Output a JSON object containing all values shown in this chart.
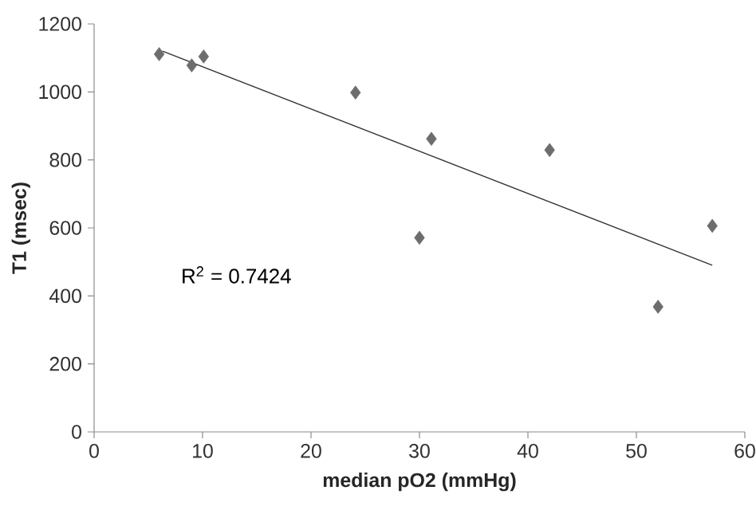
{
  "chart_data": {
    "type": "scatter",
    "xlabel": "median pO2 (mmHg)",
    "ylabel": "T1 (msec)",
    "xlim": [
      0,
      60
    ],
    "xticks": [
      0,
      10,
      20,
      30,
      40,
      50,
      60
    ],
    "ylim": [
      0,
      1200
    ],
    "yticks": [
      0,
      200,
      400,
      600,
      800,
      1000,
      1200
    ],
    "grid": false,
    "annotations": [
      "R$^{2}$ = 0.7424"
    ],
    "series": [
      {
        "marker": "diamond",
        "color": "#6d6d6d",
        "x": [
          6,
          9,
          10.1,
          24.1,
          30,
          31.1,
          42,
          52,
          57
        ],
        "values": [
          1111,
          1078,
          1104,
          998,
          571,
          862,
          829,
          368,
          606
        ]
      },
      {
        "type": "line",
        "marker": "none",
        "color": "#333333",
        "x": [
          6.3,
          57
        ],
        "values": [
          1120,
          490
        ]
      }
    ]
  }
}
